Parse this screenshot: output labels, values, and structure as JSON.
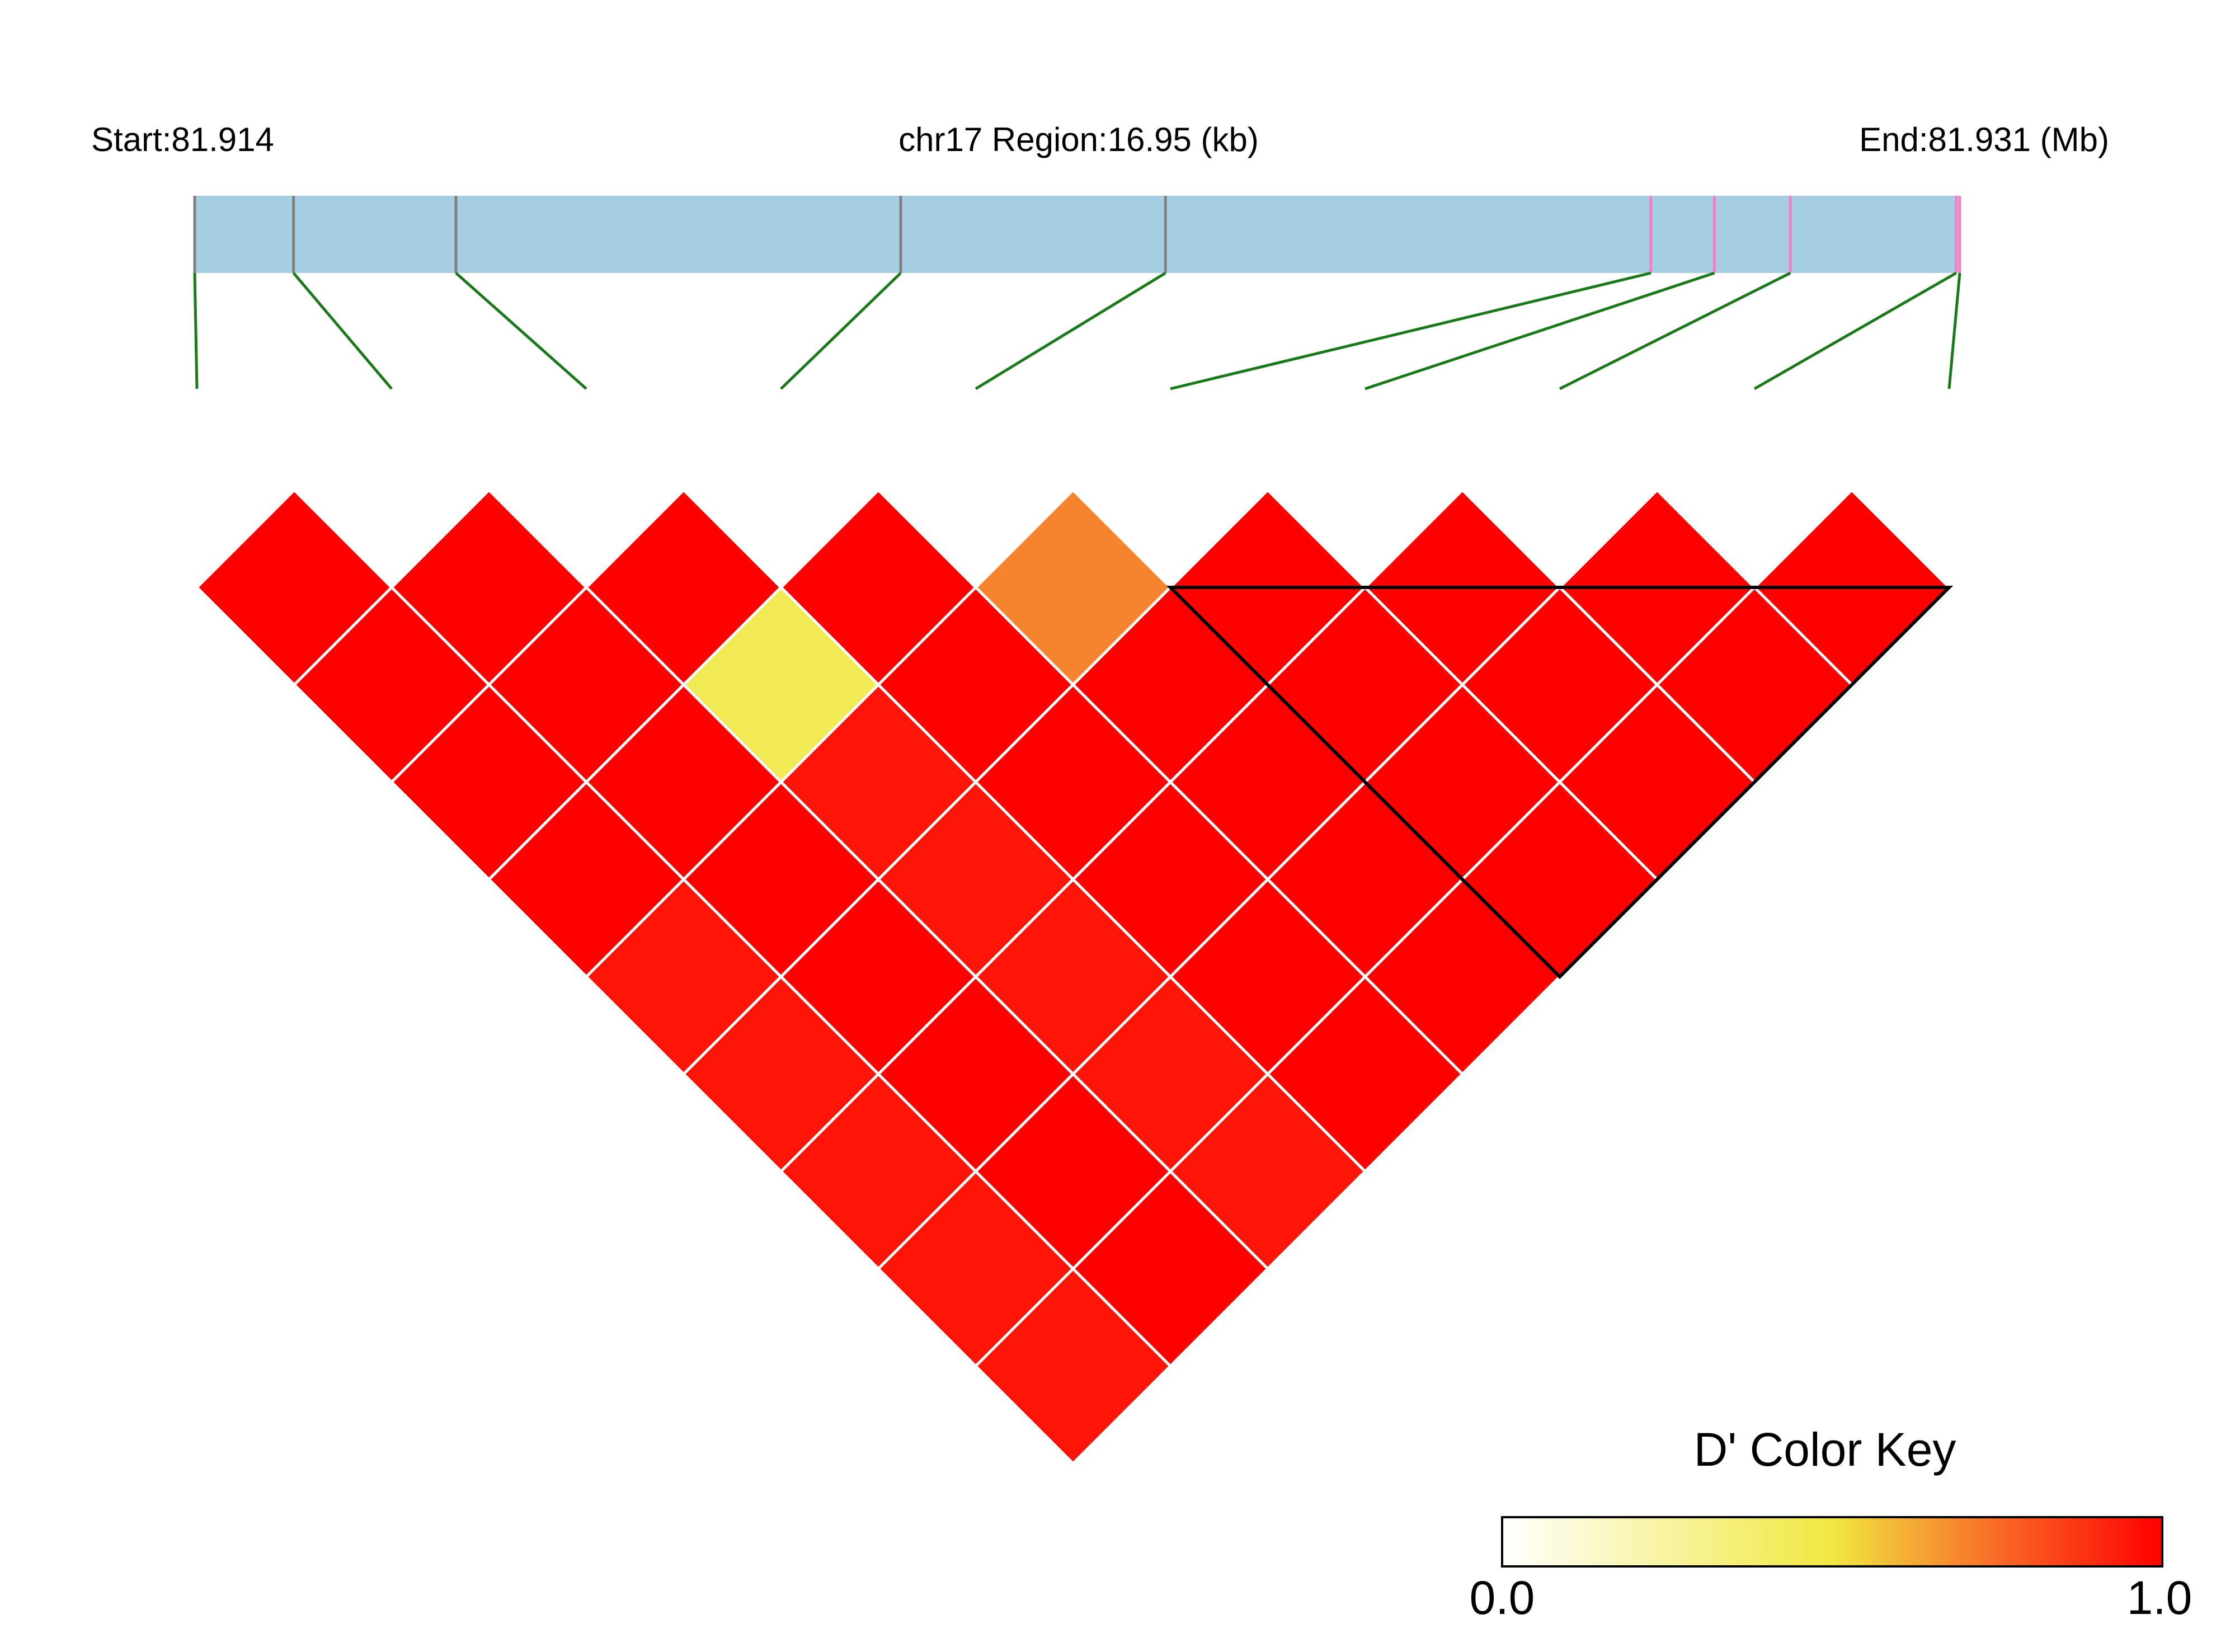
{
  "header": {
    "start_label": "Start:81.914",
    "region_label": "chr17 Region:16.95 (kb)",
    "end_label": "End:81.931 (Mb)"
  },
  "colors": {
    "region_bar": "#a6cee3",
    "marker_gray": "#808080",
    "marker_pink": "#ee82c8",
    "connector": "#1a7a1a",
    "cell_border": "#ffffff",
    "block_outline": "#000000"
  },
  "chart_data": {
    "type": "heatmap",
    "title": "",
    "subtitle": "",
    "chromosome": "chr17",
    "region_start_mb": 81.914,
    "region_end_mb": 81.931,
    "region_length_kb": 16.95,
    "snp_count": 10,
    "snp_marker_positions_fraction": [
      0.0,
      0.056,
      0.148,
      0.4,
      0.55,
      0.825,
      0.861,
      0.904,
      0.998,
      1.0
    ],
    "snp_marker_colors": [
      "#808080",
      "#808080",
      "#808080",
      "#808080",
      "#808080",
      "#ee82c8",
      "#ee82c8",
      "#ee82c8",
      "#ee82c8",
      "#ee82c8"
    ],
    "d_prime_rows_by_distance": [
      [
        1.0,
        1.0,
        1.0,
        1.0,
        0.7,
        1.0,
        1.0,
        1.0,
        1.0
      ],
      [
        1.0,
        1.0,
        0.45,
        1.0,
        1.0,
        1.0,
        1.0,
        1.0
      ],
      [
        1.0,
        1.0,
        0.95,
        1.0,
        1.0,
        1.0,
        1.0
      ],
      [
        1.0,
        1.0,
        0.95,
        1.0,
        1.0,
        1.0
      ],
      [
        0.95,
        1.0,
        0.95,
        1.0,
        1.0
      ],
      [
        0.95,
        1.0,
        0.95,
        1.0
      ],
      [
        0.95,
        1.0,
        0.95
      ],
      [
        0.95,
        1.0
      ],
      [
        0.95
      ]
    ],
    "haplotype_blocks": [
      {
        "first_snp": 6,
        "last_snp": 10
      }
    ],
    "color_key": {
      "title": "D' Color Key",
      "min_label": "0.0",
      "max_label": "1.0",
      "range": [
        0.0,
        1.0
      ],
      "gradient_stops": [
        {
          "value": 0.0,
          "color": "#ffffff"
        },
        {
          "value": 0.5,
          "color": "#f0e840"
        },
        {
          "value": 0.75,
          "color": "#f86a28"
        },
        {
          "value": 1.0,
          "color": "#ff0000"
        }
      ]
    }
  }
}
